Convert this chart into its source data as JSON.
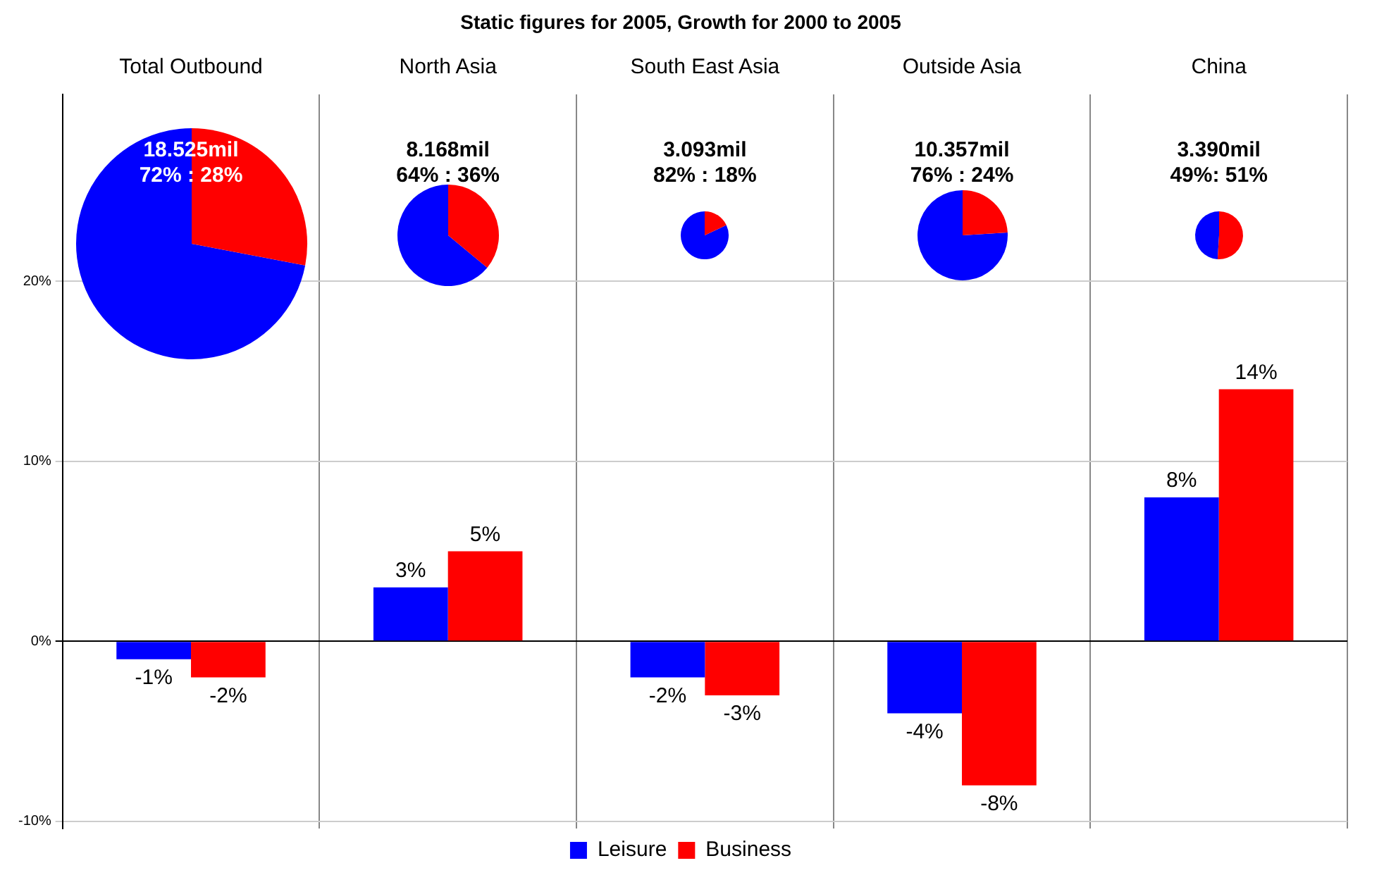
{
  "chart_data": [
    {
      "type": "bar",
      "title": "Static figures for 2005, Growth for 2000 to 2005",
      "categories": [
        "Total Outbound",
        "North Asia",
        "South East Asia",
        "Outside Asia",
        "China"
      ],
      "series": [
        {
          "name": "Leisure",
          "color": "#0000ff",
          "values": [
            -1,
            3,
            -2,
            -4,
            8
          ],
          "value_labels": [
            "-1%",
            "3%",
            "-2%",
            "-4%",
            "8%"
          ]
        },
        {
          "name": "Business",
          "color": "#ff0000",
          "values": [
            -2,
            5,
            -3,
            -8,
            14
          ],
          "value_labels": [
            "-2%",
            "5%",
            "-3%",
            "-8%",
            "14%"
          ]
        }
      ],
      "ylim": [
        -10.4,
        30.4
      ],
      "yticks": [
        {
          "value": -10,
          "label": "-10%"
        },
        {
          "value": 0,
          "label": "0%"
        },
        {
          "value": 10,
          "label": "10%"
        },
        {
          "value": 20,
          "label": "20%"
        }
      ],
      "grid": true,
      "legend": "bottom"
    },
    {
      "type": "pie",
      "categories": [
        null,
        null
      ],
      "values": [
        72,
        28
      ],
      "colors": [
        "#0000ff",
        "#ff0000"
      ],
      "annotations": [
        "18.525mil",
        "72% : 28%"
      ]
    },
    {
      "type": "pie",
      "categories": [
        null,
        null
      ],
      "values": [
        64,
        36
      ],
      "colors": [
        "#0000ff",
        "#ff0000"
      ],
      "annotations": [
        "8.168mil",
        "64% : 36%"
      ]
    },
    {
      "type": "pie",
      "categories": [
        null,
        null
      ],
      "values": [
        82,
        18
      ],
      "colors": [
        "#0000ff",
        "#ff0000"
      ],
      "annotations": [
        "3.093mil",
        "82% : 18%"
      ]
    },
    {
      "type": "pie",
      "categories": [
        null,
        null
      ],
      "values": [
        76,
        24
      ],
      "colors": [
        "#0000ff",
        "#ff0000"
      ],
      "annotations": [
        "10.357mil",
        "76% : 24%"
      ]
    },
    {
      "type": "pie",
      "categories": [
        null,
        null
      ],
      "values": [
        49,
        51
      ],
      "colors": [
        "#0000ff",
        "#ff0000"
      ],
      "annotations": [
        "3.390mil",
        "49%: 51%"
      ]
    }
  ]
}
